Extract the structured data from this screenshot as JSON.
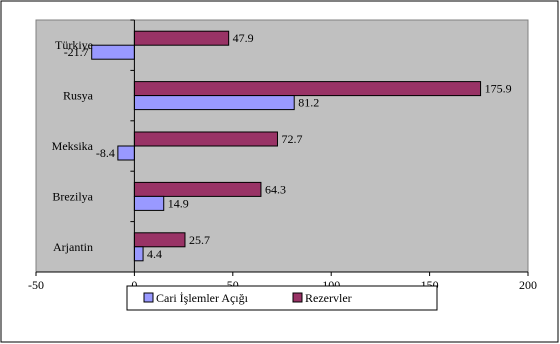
{
  "chart_data": {
    "type": "bar",
    "orientation": "horizontal",
    "categories": [
      "Türkiye",
      "Rusya",
      "Meksika",
      "Brezilya",
      "Arjantin"
    ],
    "series": [
      {
        "name": "Cari İşlemler Açığı",
        "color": "#9999ff",
        "values": [
          -21.7,
          81.2,
          -8.4,
          14.9,
          4.4
        ]
      },
      {
        "name": "Rezervler",
        "color": "#993366",
        "values": [
          47.9,
          175.9,
          72.7,
          64.3,
          25.7
        ]
      }
    ],
    "xlim": [
      -50,
      200
    ],
    "xticks": [
      -50,
      0,
      50,
      100,
      150,
      200
    ],
    "plot_background": "#c0c0c0",
    "grid": false,
    "legend_position": "bottom",
    "data_labels": true
  }
}
